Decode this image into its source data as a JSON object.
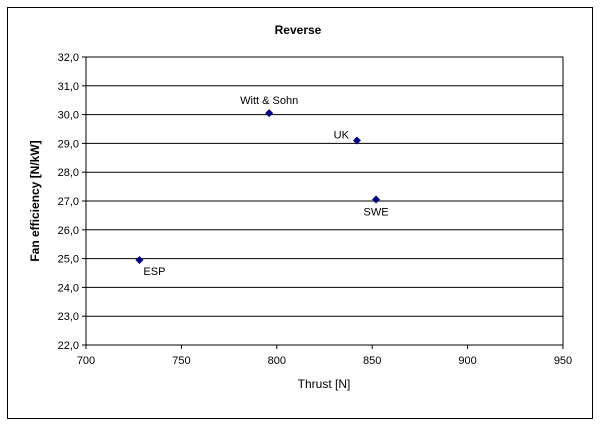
{
  "chart_data": {
    "type": "scatter",
    "title": "Reverse",
    "xlabel": "Thrust [N]",
    "ylabel": "Fan efficiency [N/kW]",
    "xlim": [
      700,
      950
    ],
    "ylim": [
      22.0,
      32.0
    ],
    "x_ticks": [
      "700",
      "750",
      "800",
      "850",
      "900",
      "950"
    ],
    "y_ticks": [
      "22,0",
      "23,0",
      "24,0",
      "25,0",
      "26,0",
      "27,0",
      "28,0",
      "29,0",
      "30,0",
      "31,0",
      "32,0"
    ],
    "grid": "horizontal",
    "marker_color": "#000080",
    "points": [
      {
        "label": "ESP",
        "x": 728,
        "y": 24.95,
        "color": "#000000",
        "label_pos": "below-right"
      },
      {
        "label": "Witt & Sohn",
        "x": 796,
        "y": 30.05,
        "color": "#cc0000",
        "label_pos": "above"
      },
      {
        "label": "UK",
        "x": 842,
        "y": 29.1,
        "color": "#000000",
        "label_pos": "left"
      },
      {
        "label": "SWE",
        "x": 852,
        "y": 27.05,
        "color": "#000000",
        "label_pos": "below"
      }
    ]
  }
}
